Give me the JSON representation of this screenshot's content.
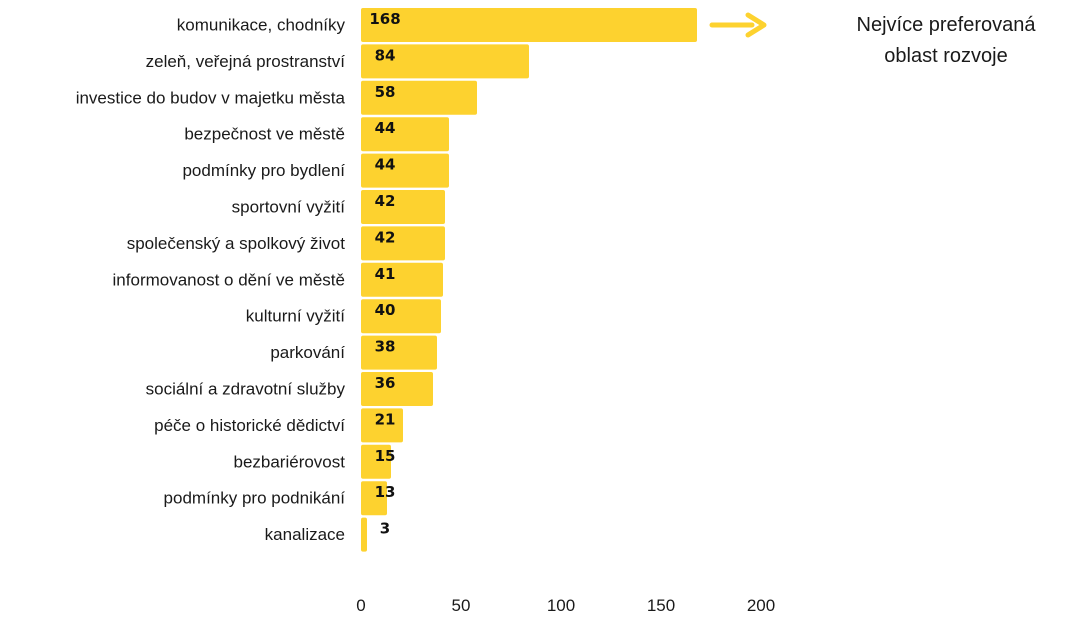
{
  "chart_data": {
    "type": "bar",
    "orientation": "horizontal",
    "categories": [
      "komunikace, chodníky",
      "zeleň, veřejná prostranství",
      "investice do budov v majetku města",
      "bezpečnost ve městě",
      "podmínky pro bydlení",
      "sportovní vyžití",
      "společenský a spolkový život",
      "informovanost o dění ve městě",
      "kulturní vyžití",
      "parkování",
      "sociální a zdravotní služby",
      "péče o historické dědictví",
      "bezbariérovost",
      "podmínky pro podnikání",
      "kanalizace"
    ],
    "values": [
      168,
      84,
      58,
      44,
      44,
      42,
      42,
      41,
      40,
      38,
      36,
      21,
      15,
      13,
      3
    ],
    "xticks": [
      0,
      50,
      100,
      150,
      200
    ],
    "xlim": [
      0,
      200
    ],
    "grid": false,
    "bar_color": "#fdd22f",
    "arrow_color": "#fdd22f",
    "annotation_lines": [
      "Nejvíce preferovaná",
      "oblast rozvoje"
    ]
  }
}
